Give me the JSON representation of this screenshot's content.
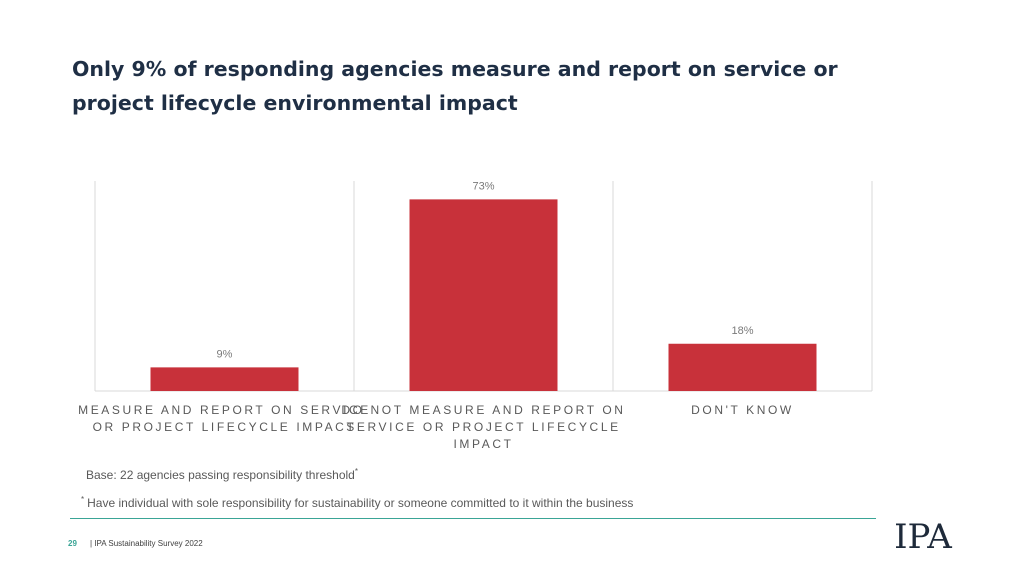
{
  "title": "Only 9% of responding agencies measure and report on service or project lifecycle environmental impact",
  "chart_data": {
    "type": "bar",
    "categories": [
      [
        "MEASURE AND REPORT ON SERVICE",
        "OR PROJECT LIFECYCLE IMPACT"
      ],
      [
        "DO NOT MEASURE AND REPORT ON",
        "SERVICE OR PROJECT LIFECYCLE",
        "IMPACT"
      ],
      [
        "DON'T KNOW"
      ]
    ],
    "values": [
      9,
      73,
      18
    ],
    "value_labels": [
      "9%",
      "73%",
      "18%"
    ],
    "unit": "%",
    "ylim": [
      0,
      80
    ],
    "bar_color": "#c8313a",
    "grid": "vertical separators only",
    "legend": "none"
  },
  "notes": {
    "base": "Base: 22 agencies passing responsibility threshold",
    "base_mark": "*",
    "footnote_mark": "*",
    "footnote": "Have individual with sole responsibility for sustainability or someone committed to it within the business"
  },
  "footer": {
    "page_number": "29",
    "text": "| IPA Sustainability Survey 2022"
  },
  "logo": {
    "text": "IPA"
  },
  "colors": {
    "accent": "#3aa596",
    "title": "#1f2f45",
    "bar": "#c8313a"
  }
}
